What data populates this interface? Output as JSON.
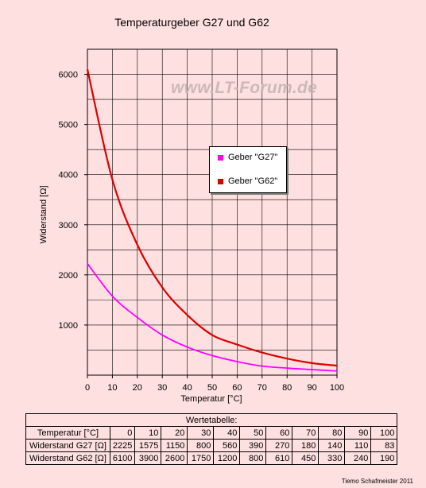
{
  "chart_data": {
    "type": "line",
    "title": "Temperaturgeber G27 und G62",
    "xlabel": "Temperatur [°C]",
    "ylabel": "Widerstand   [Ω]",
    "x": [
      0,
      10,
      20,
      30,
      40,
      50,
      60,
      70,
      80,
      90,
      100
    ],
    "xlim": [
      0,
      100
    ],
    "ylim": [
      0,
      6500
    ],
    "xticks": [
      "0",
      "10",
      "20",
      "30",
      "40",
      "50",
      "60",
      "70",
      "80",
      "90",
      "100"
    ],
    "yticks": [
      "1000",
      "2000",
      "3000",
      "4000",
      "5000",
      "6000"
    ],
    "grid": true,
    "legend_position": "center-right",
    "series": [
      {
        "name": "Geber \"G27\"",
        "color": "#ff00ff",
        "values": [
          2225,
          1575,
          1150,
          800,
          560,
          390,
          270,
          180,
          140,
          110,
          83
        ]
      },
      {
        "name": "Geber \"G62\"",
        "color": "#dd0000",
        "values": [
          6100,
          3900,
          2600,
          1750,
          1200,
          800,
          610,
          450,
          330,
          240,
          190
        ]
      }
    ]
  },
  "watermark": "www.LT-Forum.de",
  "table": {
    "caption": "Wertetabelle:",
    "rows": [
      {
        "label": "Temperatur [°C]",
        "values": [
          "0",
          "10",
          "20",
          "30",
          "40",
          "50",
          "60",
          "70",
          "80",
          "90",
          "100"
        ]
      },
      {
        "label": "Widerstand G27 [Ω]",
        "values": [
          "2225",
          "1575",
          "1150",
          "800",
          "560",
          "390",
          "270",
          "180",
          "140",
          "110",
          "83"
        ]
      },
      {
        "label": "Widerstand G62 [Ω]",
        "values": [
          "6100",
          "3900",
          "2600",
          "1750",
          "1200",
          "800",
          "610",
          "450",
          "330",
          "240",
          "190"
        ]
      }
    ]
  },
  "credit": "Tiemo Schafmeister 2011"
}
